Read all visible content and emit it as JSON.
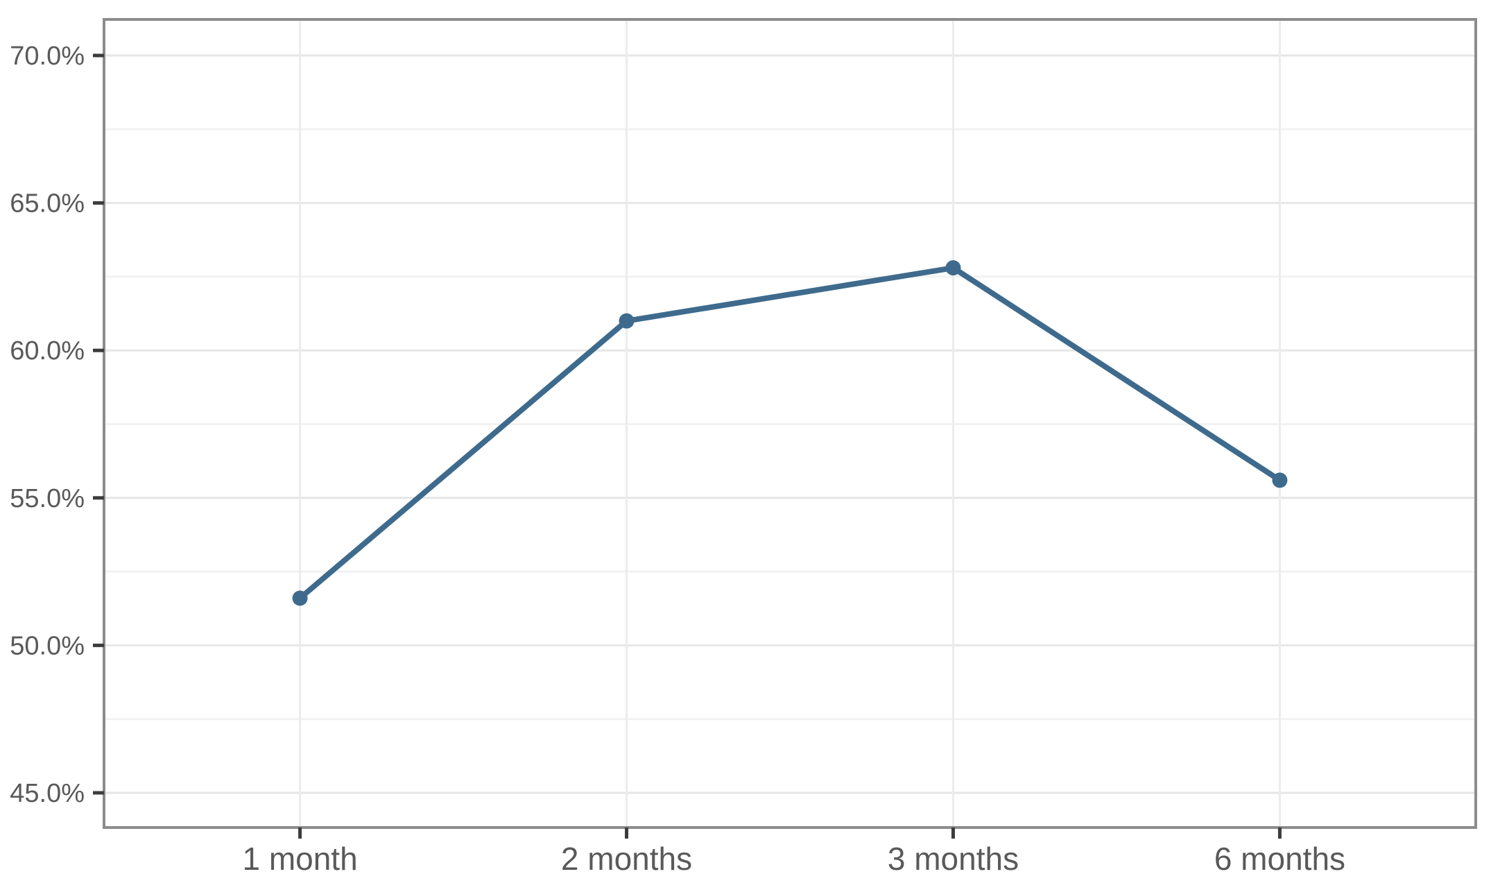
{
  "chart_data": {
    "type": "line",
    "categories": [
      "1 month",
      "2 months",
      "3 months",
      "6 months"
    ],
    "values": [
      51.6,
      61.0,
      62.8,
      55.6
    ],
    "title": "",
    "xlabel": "",
    "ylabel": "",
    "y_ticks": [
      70,
      65,
      60,
      55,
      50,
      45
    ],
    "y_minor_ticks": [
      67.5,
      62.5,
      57.5,
      52.5,
      47.5
    ],
    "y_tick_suffix": "%",
    "y_tick_decimals": 1,
    "ylim": [
      43.8,
      71.2
    ],
    "grid": "horizontal major + minor, vertical at categories",
    "legend": "none",
    "marker": "circle"
  },
  "colors": {
    "line": "#3e6b8d",
    "point": "#3e6b8d",
    "axis_text": "#595959",
    "panel_border": "#8c8c8c",
    "tick_mark": "#3c3c3c",
    "grid_major": "#e6e6e6",
    "grid_minor": "#f2f2f2",
    "grid_vertical": "#ececec",
    "background": "#ffffff"
  }
}
